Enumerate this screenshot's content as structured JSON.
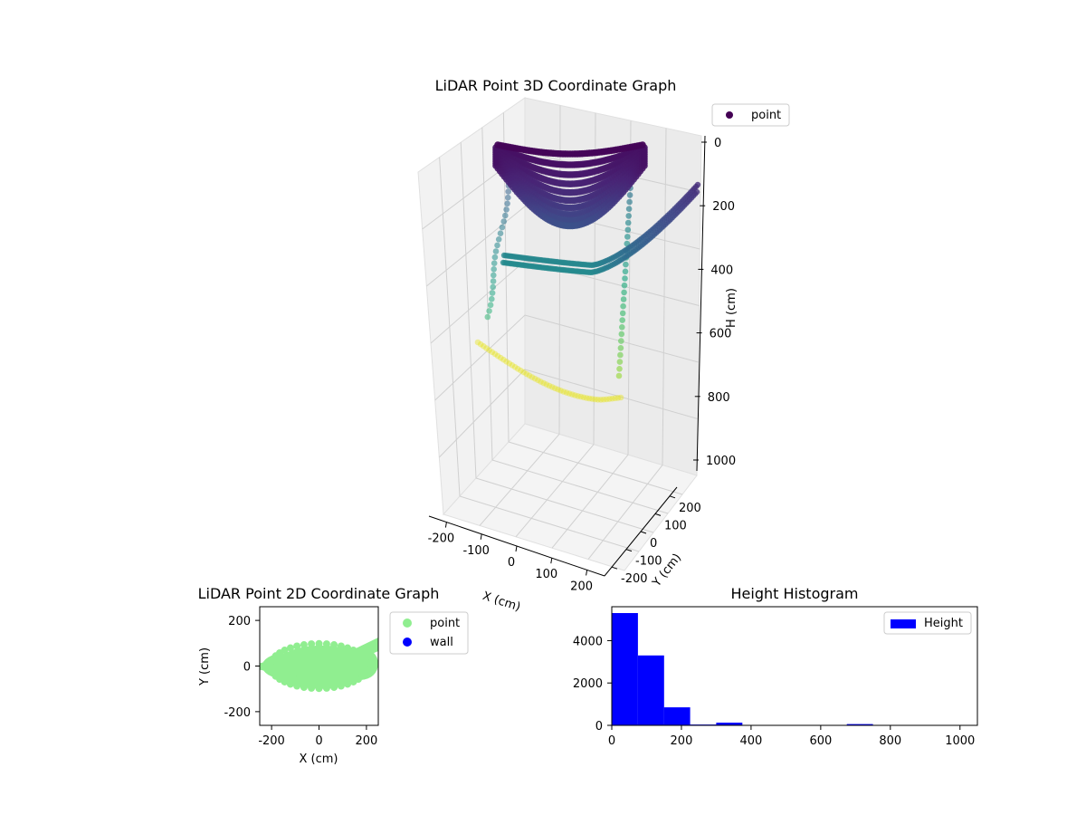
{
  "chart_data": [
    {
      "type": "scatter3d",
      "title": "LiDAR Point 3D Coordinate Graph",
      "xlabel": "X (cm)",
      "ylabel": "Y (cm)",
      "zlabel": "H (cm)",
      "xticks": [
        -200,
        -100,
        0,
        100,
        200
      ],
      "yticks": [
        -200,
        -100,
        0,
        100,
        200
      ],
      "zticks": [
        0,
        200,
        400,
        600,
        800,
        1000
      ],
      "zlim": [
        0,
        1000
      ],
      "z_inverted": true,
      "grid": true,
      "colormap": "viridis",
      "legend": {
        "entries": [
          "point"
        ],
        "placement": "top-right-outside"
      },
      "series": [
        {
          "name": "point",
          "structures": [
            {
              "kind": "dome",
              "height_range": [
                0,
                250
              ]
            },
            {
              "kind": "arc",
              "height": 400,
              "y_range": [
                -250,
                250
              ]
            },
            {
              "kind": "arc",
              "height": 800,
              "y_range": [
                -150,
                150
              ]
            },
            {
              "kind": "column",
              "x": -200,
              "height_range": [
                250,
                550
              ]
            },
            {
              "kind": "column",
              "x": 150,
              "height_range": [
                300,
                750
              ]
            }
          ]
        }
      ]
    },
    {
      "type": "scatter",
      "title": "LiDAR Point 2D Coordinate Graph",
      "xlabel": "X (cm)",
      "ylabel": "Y (cm)",
      "xticks": [
        -200,
        0,
        200
      ],
      "yticks": [
        -200,
        0,
        200
      ],
      "xlim": [
        -250,
        250
      ],
      "ylim": [
        -260,
        260
      ],
      "legend": {
        "entries": [
          "point",
          "wall"
        ],
        "placement": "right-outside"
      },
      "series": [
        {
          "name": "point",
          "color": "#90ee90",
          "region": {
            "center": [
              0,
              0
            ],
            "rx": 210,
            "ry": 100
          }
        },
        {
          "name": "wall",
          "color": "#0000ff",
          "values": []
        }
      ]
    },
    {
      "type": "bar",
      "title": "Height Histogram",
      "xticks": [
        0,
        200,
        400,
        600,
        800,
        1000
      ],
      "yticks": [
        0,
        2000,
        4000
      ],
      "xlim": [
        0,
        1050
      ],
      "ylim": [
        0,
        5600
      ],
      "legend": {
        "entries": [
          "Height"
        ],
        "placement": "top-right"
      },
      "series": [
        {
          "name": "Height",
          "color": "#0000ff",
          "bin_edges": [
            0,
            75,
            150,
            225,
            300,
            375,
            450,
            525,
            600,
            675,
            750,
            825,
            900,
            975,
            1050
          ],
          "values": [
            5300,
            3300,
            850,
            40,
            130,
            0,
            0,
            0,
            0,
            60,
            0,
            0,
            0,
            0
          ]
        }
      ]
    }
  ]
}
